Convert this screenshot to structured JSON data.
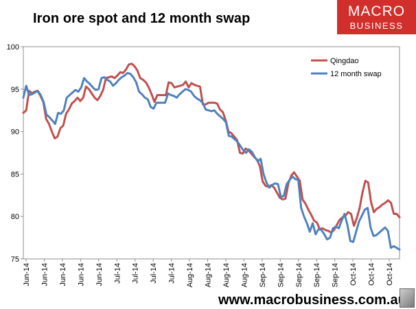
{
  "title": "Iron ore spot and 12 month swap",
  "logo": {
    "line1": "MACRO",
    "line2": "BUSINESS"
  },
  "footer": {
    "url": "www.macrobusiness.com.au"
  },
  "colors": {
    "qingdao": "#c0504d",
    "swap": "#4f81bd"
  },
  "chart_data": {
    "type": "line",
    "title": "Iron ore spot and 12 month swap",
    "xlabel": "",
    "ylabel": "",
    "ylim": [
      75,
      100
    ],
    "yticks": [
      "75",
      "80",
      "85",
      "90",
      "95",
      "100"
    ],
    "xtick_labels": [
      "Jun-14",
      "Jun-14",
      "Jun-14",
      "Jun-14",
      "Jun-14",
      "Jul-14",
      "Jul-14",
      "Jul-14",
      "Jul-14",
      "Aug-14",
      "Aug-14",
      "Aug-14",
      "Aug-14",
      "Sep-14",
      "Sep-14",
      "Sep-14",
      "Sep-14",
      "Sep-14",
      "Oct-14",
      "Oct-14",
      "Oct-14"
    ],
    "legend": {
      "position": "top-right",
      "entries": [
        "Qingdao",
        "12 month swap"
      ]
    },
    "series": [
      {
        "name": "Qingdao",
        "color": "#c0504d",
        "values": [
          92.2,
          92.5,
          94.8,
          94.5,
          94.7,
          94.8,
          94.2,
          93.5,
          91.5,
          90.9,
          90.0,
          89.2,
          89.4,
          90.4,
          90.7,
          92.1,
          92.6,
          93.3,
          93.6,
          94.0,
          93.6,
          94.0,
          95.3,
          95.0,
          94.5,
          94.0,
          93.7,
          94.2,
          94.9,
          96.3,
          96.4,
          96.5,
          96.3,
          96.6,
          97.0,
          96.9,
          97.3,
          97.9,
          98.0,
          97.7,
          97.2,
          96.3,
          96.1,
          95.8,
          95.2,
          94.4,
          93.5,
          94.3,
          94.3,
          94.3,
          94.3,
          95.8,
          95.7,
          95.2,
          95.3,
          95.4,
          95.5,
          95.9,
          95.2,
          95.7,
          95.5,
          95.4,
          95.3,
          93.2,
          93.2,
          93.4,
          93.4,
          93.4,
          93.3,
          92.6,
          92.3,
          91.3,
          90.0,
          89.8,
          89.4,
          89.0,
          87.5,
          87.4,
          88.0,
          87.8,
          87.4,
          87.0,
          86.7,
          85.9,
          84.1,
          83.6,
          83.5,
          83.7,
          83.4,
          82.8,
          82.2,
          82.0,
          82.1,
          83.9,
          84.8,
          85.2,
          84.7,
          84.2,
          82.0,
          81.5,
          80.8,
          80.2,
          79.5,
          79.3,
          78.5,
          78.6,
          78.4,
          78.3,
          78.1,
          78.4,
          79.0,
          79.6,
          79.9,
          80.1,
          80.5,
          80.3,
          78.9,
          79.8,
          81.0,
          82.8,
          84.2,
          84.0,
          81.7,
          80.5,
          80.9,
          81.1,
          81.4,
          81.6,
          81.9,
          81.6,
          80.3,
          80.3,
          79.9
        ]
      },
      {
        "name": "12 month swap",
        "color": "#4f81bd",
        "values": [
          94.0,
          95.4,
          94.3,
          94.4,
          94.6,
          94.8,
          94.3,
          93.5,
          92.0,
          91.7,
          91.3,
          90.9,
          92.2,
          92.1,
          92.5,
          94.0,
          94.3,
          94.6,
          94.9,
          94.7,
          95.2,
          96.3,
          95.9,
          95.6,
          95.2,
          94.9,
          95.0,
          96.3,
          96.4,
          96.1,
          95.9,
          95.4,
          95.7,
          96.1,
          96.4,
          96.6,
          96.9,
          96.8,
          96.4,
          95.8,
          94.7,
          94.4,
          94.0,
          93.8,
          92.9,
          92.7,
          93.4,
          93.4,
          93.4,
          93.4,
          94.5,
          94.3,
          94.2,
          94.0,
          94.4,
          94.7,
          95.0,
          94.9,
          94.7,
          94.2,
          93.9,
          93.7,
          93.4,
          92.6,
          92.5,
          92.4,
          92.5,
          92.1,
          91.8,
          91.5,
          91.1,
          89.5,
          89.4,
          89.1,
          88.8,
          88.3,
          87.8,
          87.5,
          87.9,
          87.6,
          87.0,
          86.5,
          86.8,
          85.0,
          84.0,
          83.4,
          83.7,
          83.9,
          83.8,
          82.3,
          82.4,
          83.8,
          84.3,
          84.7,
          84.4,
          84.3,
          81.0,
          80.0,
          79.2,
          78.2,
          79.2,
          77.9,
          78.5,
          78.4,
          77.9,
          77.3,
          77.5,
          78.6,
          78.8,
          78.6,
          79.5,
          80.3,
          79.0,
          77.1,
          77.0,
          78.2,
          79.4,
          80.1,
          80.8,
          81.0,
          78.7,
          77.7,
          77.8,
          78.1,
          78.4,
          78.7,
          78.3,
          76.3,
          76.5,
          76.3,
          76.1
        ]
      }
    ]
  }
}
